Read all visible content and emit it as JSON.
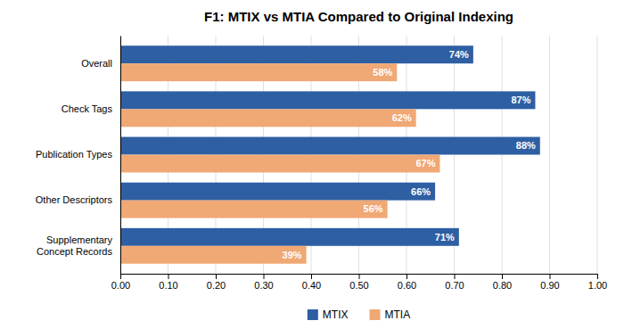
{
  "chart_data": {
    "type": "bar",
    "orientation": "horizontal",
    "title": "F1: MTIX vs MTIA Compared to Original Indexing",
    "categories": [
      "Overall",
      "Check Tags",
      "Publication Types",
      "Other Descriptors",
      "Supplementary\nConcept Records"
    ],
    "series": [
      {
        "name": "MTIX",
        "color": "#2E5FA3",
        "values": [
          0.74,
          0.87,
          0.88,
          0.66,
          0.71
        ],
        "value_labels": [
          "74%",
          "87%",
          "88%",
          "66%",
          "71%"
        ]
      },
      {
        "name": "MTIA",
        "color": "#F0A875",
        "values": [
          0.58,
          0.62,
          0.67,
          0.56,
          0.39
        ],
        "value_labels": [
          "58%",
          "62%",
          "67%",
          "56%",
          "39%"
        ]
      }
    ],
    "xlim": [
      0,
      1.0
    ],
    "xticks": [
      {
        "value": 0.0,
        "label": "0.00"
      },
      {
        "value": 0.1,
        "label": "0.10"
      },
      {
        "value": 0.2,
        "label": "0.20"
      },
      {
        "value": 0.3,
        "label": "0.30"
      },
      {
        "value": 0.4,
        "label": "0.40"
      },
      {
        "value": 0.5,
        "label": "0.50"
      },
      {
        "value": 0.6,
        "label": "0.60"
      },
      {
        "value": 0.7,
        "label": "0.70"
      },
      {
        "value": 0.8,
        "label": "0.80"
      },
      {
        "value": 0.9,
        "label": "0.90"
      },
      {
        "value": 1.0,
        "label": "1.00"
      }
    ],
    "grid": true,
    "legend": "bottom",
    "data_labels": true
  }
}
